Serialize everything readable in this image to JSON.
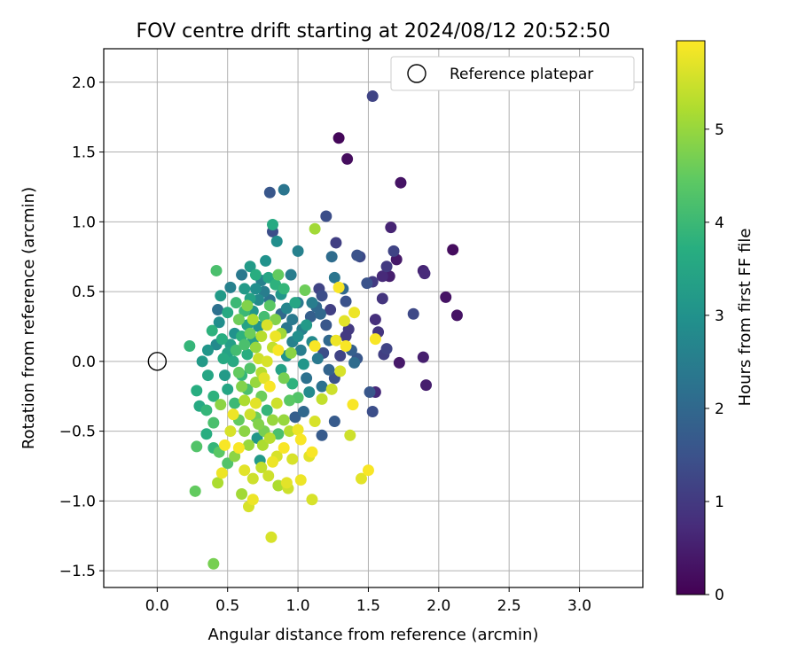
{
  "chart_data": {
    "type": "scatter",
    "title": "FOV centre drift starting at 2024/08/12 20:52:50",
    "xlabel": "Angular distance from reference (arcmin)",
    "ylabel": "Rotation from reference (arcmin)",
    "xlim": [
      -0.38,
      3.45
    ],
    "ylim": [
      -1.62,
      2.24
    ],
    "xticks": [
      0.0,
      0.5,
      1.0,
      1.5,
      2.0,
      2.5,
      3.0
    ],
    "xtick_labels": [
      "0.0",
      "0.5",
      "1.0",
      "1.5",
      "2.0",
      "2.5",
      "3.0"
    ],
    "yticks": [
      -1.5,
      -1.0,
      -0.5,
      0.0,
      0.5,
      1.0,
      1.5,
      2.0
    ],
    "ytick_labels": [
      "−1.5",
      "−1.0",
      "−0.5",
      "0.0",
      "0.5",
      "1.0",
      "1.5",
      "2.0"
    ],
    "grid": true,
    "legend": {
      "position": "top-right",
      "entries": [
        {
          "label": "Reference platepar",
          "marker": "open-circle"
        }
      ]
    },
    "reference_point": {
      "x": 0.0,
      "y": 0.0
    },
    "colorbar": {
      "label": "Hours from first FF file",
      "colormap": "viridis",
      "range": [
        0,
        5.95
      ],
      "ticks": [
        0,
        1,
        2,
        3,
        4,
        5
      ],
      "tick_labels": [
        "0",
        "1",
        "2",
        "3",
        "4",
        "5"
      ]
    },
    "points": [
      {
        "x": 1.29,
        "y": 1.6,
        "c": 0.1
      },
      {
        "x": 1.35,
        "y": 1.45,
        "c": 0.2
      },
      {
        "x": 1.73,
        "y": 1.28,
        "c": 0.3
      },
      {
        "x": 2.1,
        "y": 0.8,
        "c": 0.2
      },
      {
        "x": 2.13,
        "y": 0.33,
        "c": 0.3
      },
      {
        "x": 2.05,
        "y": 0.46,
        "c": 0.3
      },
      {
        "x": 1.91,
        "y": -0.17,
        "c": 0.5
      },
      {
        "x": 1.89,
        "y": 0.03,
        "c": 0.5
      },
      {
        "x": 1.72,
        "y": -0.01,
        "c": 0.4
      },
      {
        "x": 1.89,
        "y": 0.65,
        "c": 0.6
      },
      {
        "x": 1.9,
        "y": 0.63,
        "c": 0.7
      },
      {
        "x": 1.66,
        "y": 0.96,
        "c": 0.6
      },
      {
        "x": 1.7,
        "y": 0.73,
        "c": 0.4
      },
      {
        "x": 1.65,
        "y": 0.61,
        "c": 0.5
      },
      {
        "x": 1.6,
        "y": 0.61,
        "c": 0.7
      },
      {
        "x": 1.68,
        "y": 0.79,
        "c": 1.2
      },
      {
        "x": 1.63,
        "y": 0.68,
        "c": 1.0
      },
      {
        "x": 1.6,
        "y": 0.45,
        "c": 0.9
      },
      {
        "x": 1.55,
        "y": 0.3,
        "c": 0.8
      },
      {
        "x": 1.57,
        "y": 0.21,
        "c": 0.9
      },
      {
        "x": 1.55,
        "y": -0.22,
        "c": 0.7
      },
      {
        "x": 1.53,
        "y": 1.9,
        "c": 1.2
      },
      {
        "x": 1.82,
        "y": 0.34,
        "c": 1.3
      },
      {
        "x": 1.61,
        "y": 0.05,
        "c": 1.1
      },
      {
        "x": 1.63,
        "y": 0.09,
        "c": 1.2
      },
      {
        "x": 1.53,
        "y": -0.36,
        "c": 1.4
      },
      {
        "x": 1.51,
        "y": -0.22,
        "c": 1.6
      },
      {
        "x": 1.53,
        "y": 0.57,
        "c": 1.0
      },
      {
        "x": 1.49,
        "y": 0.56,
        "c": 1.5
      },
      {
        "x": 1.42,
        "y": 0.76,
        "c": 1.5
      },
      {
        "x": 1.44,
        "y": 0.75,
        "c": 1.3
      },
      {
        "x": 1.27,
        "y": 0.85,
        "c": 1.1
      },
      {
        "x": 1.2,
        "y": 1.04,
        "c": 1.4
      },
      {
        "x": 1.24,
        "y": 0.75,
        "c": 2.1
      },
      {
        "x": 1.26,
        "y": 0.6,
        "c": 2.3
      },
      {
        "x": 1.23,
        "y": 0.37,
        "c": 1.1
      },
      {
        "x": 1.17,
        "y": 0.47,
        "c": 1.4
      },
      {
        "x": 1.36,
        "y": 0.23,
        "c": 1.0
      },
      {
        "x": 1.38,
        "y": 0.08,
        "c": 1.8
      },
      {
        "x": 1.4,
        "y": -0.01,
        "c": 2.1
      },
      {
        "x": 1.42,
        "y": 0.02,
        "c": 1.6
      },
      {
        "x": 1.34,
        "y": 0.43,
        "c": 1.5
      },
      {
        "x": 1.32,
        "y": 0.52,
        "c": 2.0
      },
      {
        "x": 1.26,
        "y": -0.43,
        "c": 1.7
      },
      {
        "x": 1.22,
        "y": 0.15,
        "c": 2.0
      },
      {
        "x": 1.18,
        "y": 0.06,
        "c": 1.4
      },
      {
        "x": 1.15,
        "y": 0.52,
        "c": 1.2
      },
      {
        "x": 1.17,
        "y": -0.18,
        "c": 2.2
      },
      {
        "x": 1.17,
        "y": -0.53,
        "c": 1.7
      },
      {
        "x": 1.13,
        "y": 0.39,
        "c": 2.0
      },
      {
        "x": 1.09,
        "y": 0.32,
        "c": 1.8
      },
      {
        "x": 1.03,
        "y": 0.23,
        "c": 2.6
      },
      {
        "x": 1.0,
        "y": 0.42,
        "c": 2.4
      },
      {
        "x": 1.0,
        "y": 0.79,
        "c": 2.6
      },
      {
        "x": 0.9,
        "y": 1.23,
        "c": 2.3
      },
      {
        "x": 0.8,
        "y": 1.21,
        "c": 1.6
      },
      {
        "x": 0.82,
        "y": 0.93,
        "c": 1.4
      },
      {
        "x": 0.95,
        "y": 0.62,
        "c": 2.5
      },
      {
        "x": 0.85,
        "y": 0.86,
        "c": 2.9
      },
      {
        "x": 0.82,
        "y": 0.98,
        "c": 3.6
      },
      {
        "x": 0.77,
        "y": 0.72,
        "c": 3.0
      },
      {
        "x": 0.66,
        "y": 0.68,
        "c": 3.2
      },
      {
        "x": 0.6,
        "y": 0.62,
        "c": 2.4
      },
      {
        "x": 0.52,
        "y": 0.53,
        "c": 2.6
      },
      {
        "x": 0.45,
        "y": 0.47,
        "c": 3.2
      },
      {
        "x": 0.42,
        "y": 0.65,
        "c": 4.2
      },
      {
        "x": 0.43,
        "y": 0.37,
        "c": 2.2
      },
      {
        "x": 0.39,
        "y": 0.22,
        "c": 3.8
      },
      {
        "x": 0.42,
        "y": 0.12,
        "c": 2.8
      },
      {
        "x": 0.23,
        "y": 0.11,
        "c": 3.9
      },
      {
        "x": 0.36,
        "y": 0.08,
        "c": 3.1
      },
      {
        "x": 0.28,
        "y": -0.21,
        "c": 3.7
      },
      {
        "x": 0.28,
        "y": -0.61,
        "c": 4.3
      },
      {
        "x": 0.27,
        "y": -0.93,
        "c": 4.5
      },
      {
        "x": 0.3,
        "y": -0.32,
        "c": 3.6
      },
      {
        "x": 0.35,
        "y": -0.35,
        "c": 3.9
      },
      {
        "x": 0.35,
        "y": -0.52,
        "c": 3.7
      },
      {
        "x": 0.4,
        "y": -0.44,
        "c": 4.2
      },
      {
        "x": 0.4,
        "y": -0.62,
        "c": 3.9
      },
      {
        "x": 0.43,
        "y": -0.87,
        "c": 5.2
      },
      {
        "x": 0.46,
        "y": -0.8,
        "c": 5.8
      },
      {
        "x": 0.4,
        "y": -1.45,
        "c": 4.7
      },
      {
        "x": 0.45,
        "y": -0.31,
        "c": 4.9
      },
      {
        "x": 0.5,
        "y": -0.73,
        "c": 4.3
      },
      {
        "x": 0.55,
        "y": -0.68,
        "c": 4.9
      },
      {
        "x": 0.6,
        "y": -0.95,
        "c": 5.1
      },
      {
        "x": 0.65,
        "y": -1.04,
        "c": 5.6
      },
      {
        "x": 0.68,
        "y": -0.99,
        "c": 5.8
      },
      {
        "x": 0.73,
        "y": -0.71,
        "c": 3.2
      },
      {
        "x": 0.71,
        "y": -0.55,
        "c": 3.1
      },
      {
        "x": 0.79,
        "y": -0.82,
        "c": 5.5
      },
      {
        "x": 0.81,
        "y": -1.26,
        "c": 5.6
      },
      {
        "x": 0.86,
        "y": -0.89,
        "c": 5.2
      },
      {
        "x": 0.92,
        "y": -0.87,
        "c": 5.7
      },
      {
        "x": 0.93,
        "y": -0.91,
        "c": 5.5
      },
      {
        "x": 1.02,
        "y": -0.85,
        "c": 5.8
      },
      {
        "x": 1.1,
        "y": -0.99,
        "c": 5.6
      },
      {
        "x": 1.1,
        "y": -0.65,
        "c": 5.9
      },
      {
        "x": 1.08,
        "y": -0.68,
        "c": 5.7
      },
      {
        "x": 1.02,
        "y": -0.56,
        "c": 5.9
      },
      {
        "x": 1.0,
        "y": -0.49,
        "c": 5.8
      },
      {
        "x": 1.12,
        "y": -0.43,
        "c": 5.6
      },
      {
        "x": 1.17,
        "y": -0.27,
        "c": 5.4
      },
      {
        "x": 1.24,
        "y": -0.2,
        "c": 5.5
      },
      {
        "x": 1.3,
        "y": -0.07,
        "c": 5.6
      },
      {
        "x": 1.34,
        "y": 0.11,
        "c": 5.9
      },
      {
        "x": 1.39,
        "y": -0.31,
        "c": 5.9
      },
      {
        "x": 1.37,
        "y": -0.53,
        "c": 5.5
      },
      {
        "x": 1.45,
        "y": -0.84,
        "c": 5.7
      },
      {
        "x": 1.5,
        "y": -0.78,
        "c": 5.9
      },
      {
        "x": 1.4,
        "y": 0.35,
        "c": 5.8
      },
      {
        "x": 1.33,
        "y": 0.29,
        "c": 5.7
      },
      {
        "x": 1.29,
        "y": 0.53,
        "c": 5.9
      },
      {
        "x": 1.55,
        "y": 0.16,
        "c": 5.9
      },
      {
        "x": 1.27,
        "y": 0.15,
        "c": 5.8
      },
      {
        "x": 1.12,
        "y": 0.11,
        "c": 5.9
      },
      {
        "x": 1.05,
        "y": 0.51,
        "c": 4.6
      },
      {
        "x": 1.12,
        "y": 0.95,
        "c": 5.1
      },
      {
        "x": 0.95,
        "y": 0.06,
        "c": 4.9
      },
      {
        "x": 0.9,
        "y": -0.12,
        "c": 4.7
      },
      {
        "x": 0.85,
        "y": -0.3,
        "c": 5.5
      },
      {
        "x": 0.85,
        "y": -0.68,
        "c": 5.6
      },
      {
        "x": 0.8,
        "y": -0.55,
        "c": 5.3
      },
      {
        "x": 0.75,
        "y": -0.6,
        "c": 5.2
      },
      {
        "x": 0.72,
        "y": -0.45,
        "c": 4.8
      },
      {
        "x": 0.65,
        "y": -0.6,
        "c": 5.0
      },
      {
        "x": 0.62,
        "y": -0.5,
        "c": 4.9
      },
      {
        "x": 0.58,
        "y": -0.42,
        "c": 4.5
      },
      {
        "x": 0.55,
        "y": -0.3,
        "c": 4.0
      },
      {
        "x": 0.5,
        "y": -0.2,
        "c": 3.5
      },
      {
        "x": 0.48,
        "y": -0.1,
        "c": 3.2
      },
      {
        "x": 0.47,
        "y": 0.02,
        "c": 3.6
      },
      {
        "x": 0.52,
        "y": 0.12,
        "c": 3.3
      },
      {
        "x": 0.55,
        "y": 0.2,
        "c": 3.0
      },
      {
        "x": 0.58,
        "y": 0.3,
        "c": 4.6
      },
      {
        "x": 0.62,
        "y": 0.36,
        "c": 4.0
      },
      {
        "x": 0.66,
        "y": 0.45,
        "c": 3.4
      },
      {
        "x": 0.7,
        "y": 0.52,
        "c": 2.9
      },
      {
        "x": 0.74,
        "y": 0.58,
        "c": 2.6
      },
      {
        "x": 0.79,
        "y": 0.6,
        "c": 3.5
      },
      {
        "x": 0.84,
        "y": 0.55,
        "c": 3.8
      },
      {
        "x": 0.88,
        "y": 0.48,
        "c": 3.1
      },
      {
        "x": 0.92,
        "y": 0.38,
        "c": 2.7
      },
      {
        "x": 0.96,
        "y": 0.3,
        "c": 2.4
      },
      {
        "x": 1.0,
        "y": 0.18,
        "c": 2.9
      },
      {
        "x": 1.02,
        "y": 0.08,
        "c": 2.5
      },
      {
        "x": 1.04,
        "y": -0.02,
        "c": 3.1
      },
      {
        "x": 1.06,
        "y": -0.12,
        "c": 2.2
      },
      {
        "x": 1.08,
        "y": -0.22,
        "c": 2.8
      },
      {
        "x": 1.04,
        "y": -0.36,
        "c": 2.0
      },
      {
        "x": 0.98,
        "y": -0.4,
        "c": 1.8
      },
      {
        "x": 0.94,
        "y": -0.28,
        "c": 4.4
      },
      {
        "x": 0.9,
        "y": -0.42,
        "c": 5.0
      },
      {
        "x": 0.86,
        "y": -0.52,
        "c": 4.2
      },
      {
        "x": 0.78,
        "y": -0.35,
        "c": 3.9
      },
      {
        "x": 0.74,
        "y": -0.25,
        "c": 4.6
      },
      {
        "x": 0.7,
        "y": -0.15,
        "c": 5.0
      },
      {
        "x": 0.66,
        "y": -0.05,
        "c": 4.3
      },
      {
        "x": 0.64,
        "y": 0.05,
        "c": 3.7
      },
      {
        "x": 0.68,
        "y": 0.15,
        "c": 3.3
      },
      {
        "x": 0.72,
        "y": 0.25,
        "c": 3.0
      },
      {
        "x": 0.76,
        "y": 0.32,
        "c": 4.1
      },
      {
        "x": 0.8,
        "y": 0.4,
        "c": 4.4
      },
      {
        "x": 0.84,
        "y": 0.3,
        "c": 4.8
      },
      {
        "x": 0.88,
        "y": 0.2,
        "c": 5.1
      },
      {
        "x": 0.82,
        "y": 0.1,
        "c": 5.4
      },
      {
        "x": 0.78,
        "y": 0.0,
        "c": 5.6
      },
      {
        "x": 0.74,
        "y": -0.08,
        "c": 5.3
      },
      {
        "x": 0.7,
        "y": -0.3,
        "c": 5.7
      },
      {
        "x": 0.66,
        "y": -0.38,
        "c": 5.5
      },
      {
        "x": 0.62,
        "y": -0.28,
        "c": 5.2
      },
      {
        "x": 0.6,
        "y": -0.18,
        "c": 4.8
      },
      {
        "x": 0.58,
        "y": -0.08,
        "c": 4.5
      },
      {
        "x": 0.56,
        "y": 0.08,
        "c": 4.1
      },
      {
        "x": 0.6,
        "y": 0.18,
        "c": 3.8
      },
      {
        "x": 0.64,
        "y": 0.26,
        "c": 3.4
      },
      {
        "x": 0.68,
        "y": 0.36,
        "c": 3.1
      },
      {
        "x": 0.72,
        "y": 0.44,
        "c": 2.8
      },
      {
        "x": 0.76,
        "y": 0.5,
        "c": 2.5
      },
      {
        "x": 0.8,
        "y": 0.44,
        "c": 2.2
      },
      {
        "x": 0.88,
        "y": 0.34,
        "c": 2.0
      },
      {
        "x": 0.92,
        "y": 0.24,
        "c": 2.3
      },
      {
        "x": 0.96,
        "y": 0.14,
        "c": 2.6
      },
      {
        "x": 0.92,
        "y": 0.04,
        "c": 3.0
      },
      {
        "x": 0.88,
        "y": -0.06,
        "c": 3.4
      },
      {
        "x": 0.96,
        "y": -0.16,
        "c": 3.8
      },
      {
        "x": 1.0,
        "y": -0.26,
        "c": 4.3
      },
      {
        "x": 0.52,
        "y": -0.5,
        "c": 5.6
      },
      {
        "x": 0.48,
        "y": -0.6,
        "c": 5.9
      },
      {
        "x": 0.44,
        "y": -0.65,
        "c": 4.4
      },
      {
        "x": 0.4,
        "y": -0.25,
        "c": 3.8
      },
      {
        "x": 0.36,
        "y": -0.1,
        "c": 3.5
      },
      {
        "x": 0.32,
        "y": 0.0,
        "c": 3.2
      },
      {
        "x": 0.44,
        "y": 0.28,
        "c": 2.9
      },
      {
        "x": 0.5,
        "y": 0.35,
        "c": 3.6
      },
      {
        "x": 0.56,
        "y": 0.42,
        "c": 4.0
      },
      {
        "x": 0.62,
        "y": 0.52,
        "c": 3.2
      },
      {
        "x": 0.7,
        "y": 0.62,
        "c": 3.7
      },
      {
        "x": 0.86,
        "y": 0.62,
        "c": 4.5
      },
      {
        "x": 0.9,
        "y": 0.52,
        "c": 3.9
      },
      {
        "x": 0.98,
        "y": 0.42,
        "c": 3.5
      },
      {
        "x": 1.06,
        "y": 0.26,
        "c": 3.2
      },
      {
        "x": 1.1,
        "y": 0.14,
        "c": 2.8
      },
      {
        "x": 1.14,
        "y": 0.02,
        "c": 2.4
      },
      {
        "x": 1.22,
        "y": -0.06,
        "c": 1.9
      },
      {
        "x": 1.26,
        "y": -0.12,
        "c": 1.5
      },
      {
        "x": 1.3,
        "y": 0.04,
        "c": 1.2
      },
      {
        "x": 1.34,
        "y": 0.18,
        "c": 1.0
      },
      {
        "x": 1.2,
        "y": 0.26,
        "c": 1.6
      },
      {
        "x": 1.16,
        "y": 0.34,
        "c": 2.0
      },
      {
        "x": 1.1,
        "y": 0.42,
        "c": 2.5
      },
      {
        "x": 0.54,
        "y": -0.38,
        "c": 5.8
      },
      {
        "x": 0.58,
        "y": -0.62,
        "c": 5.9
      },
      {
        "x": 0.62,
        "y": -0.78,
        "c": 5.7
      },
      {
        "x": 0.68,
        "y": -0.84,
        "c": 5.5
      },
      {
        "x": 0.74,
        "y": -0.76,
        "c": 5.4
      },
      {
        "x": 0.82,
        "y": -0.72,
        "c": 5.8
      },
      {
        "x": 0.9,
        "y": -0.62,
        "c": 5.9
      },
      {
        "x": 0.96,
        "y": -0.7,
        "c": 5.6
      },
      {
        "x": 0.94,
        "y": -0.5,
        "c": 5.3
      },
      {
        "x": 0.82,
        "y": -0.42,
        "c": 5.0
      },
      {
        "x": 0.76,
        "y": -0.5,
        "c": 4.7
      },
      {
        "x": 0.7,
        "y": -0.4,
        "c": 4.6
      },
      {
        "x": 0.64,
        "y": -0.2,
        "c": 4.2
      },
      {
        "x": 0.6,
        "y": -0.1,
        "c": 3.9
      },
      {
        "x": 0.54,
        "y": 0.0,
        "c": 3.6
      },
      {
        "x": 0.5,
        "y": 0.06,
        "c": 3.4
      },
      {
        "x": 0.46,
        "y": 0.16,
        "c": 3.7
      },
      {
        "x": 0.62,
        "y": 0.12,
        "c": 4.2
      },
      {
        "x": 0.66,
        "y": 0.2,
        "c": 4.6
      },
      {
        "x": 0.7,
        "y": 0.1,
        "c": 5.0
      },
      {
        "x": 0.74,
        "y": 0.18,
        "c": 5.3
      },
      {
        "x": 0.78,
        "y": 0.26,
        "c": 5.6
      },
      {
        "x": 0.84,
        "y": 0.18,
        "c": 5.8
      },
      {
        "x": 0.86,
        "y": 0.08,
        "c": 5.9
      },
      {
        "x": 0.8,
        "y": -0.18,
        "c": 5.9
      },
      {
        "x": 0.76,
        "y": -0.12,
        "c": 5.7
      },
      {
        "x": 0.72,
        "y": 0.02,
        "c": 5.5
      },
      {
        "x": 0.68,
        "y": 0.3,
        "c": 5.2
      },
      {
        "x": 0.64,
        "y": 0.4,
        "c": 4.8
      }
    ]
  }
}
